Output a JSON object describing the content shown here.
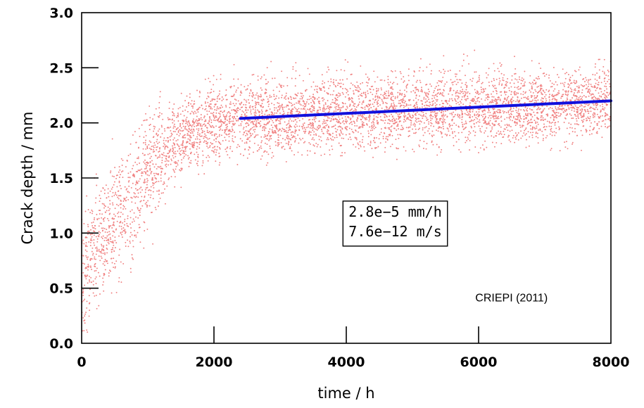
{
  "chart_data": {
    "type": "scatter",
    "xlabel": "time / h",
    "ylabel": "Crack depth / mm",
    "xlim": [
      0,
      8000
    ],
    "ylim": [
      0.0,
      3.0
    ],
    "x_ticks": [
      0,
      2000,
      4000,
      6000,
      8000
    ],
    "y_ticks": [
      0.0,
      0.5,
      1.0,
      1.5,
      2.0,
      2.5,
      3.0
    ],
    "x_tick_labels": [
      "0",
      "2000",
      "4000",
      "6000",
      "8000"
    ],
    "y_tick_labels": [
      "0.0",
      "0.5",
      "1.0",
      "1.5",
      "2.0",
      "2.5",
      "3.0"
    ],
    "grid": false,
    "series": [
      {
        "kind": "scatter",
        "color": "#f08080",
        "trend_points": [
          [
            0,
            0.65
          ],
          [
            250,
            0.9
          ],
          [
            500,
            1.1
          ],
          [
            750,
            1.3
          ],
          [
            1000,
            1.55
          ],
          [
            1250,
            1.72
          ],
          [
            1500,
            1.85
          ],
          [
            1750,
            1.95
          ],
          [
            2000,
            2.02
          ],
          [
            2500,
            2.05
          ],
          [
            3000,
            2.06
          ],
          [
            4000,
            2.1
          ],
          [
            5000,
            2.12
          ],
          [
            6000,
            2.15
          ],
          [
            7000,
            2.15
          ],
          [
            8000,
            2.2
          ]
        ],
        "spread_sd": 0.17
      },
      {
        "kind": "fit-line",
        "color": "#1010dd",
        "x": [
          2400,
          8000
        ],
        "y": [
          2.04,
          2.2
        ]
      }
    ],
    "annotations": [
      {
        "lines": [
          "2.8e−5 mm/h",
          "7.6e−12 m/s"
        ],
        "x": 3950,
        "y": 1.15,
        "boxed": true
      },
      {
        "lines": [
          "CRIEPI (2011)"
        ],
        "x": 5950,
        "y": 0.38,
        "boxed": false
      }
    ]
  }
}
